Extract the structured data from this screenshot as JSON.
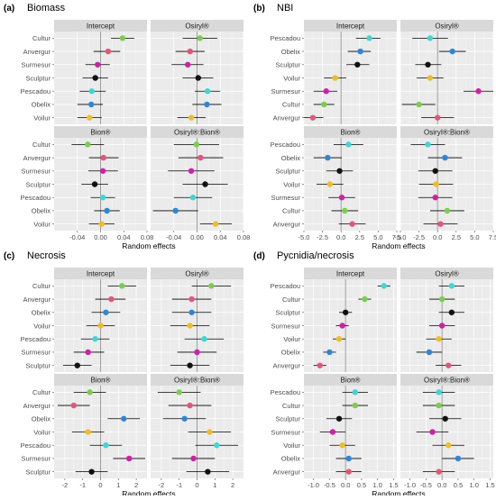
{
  "figure": {
    "axis_title": "Random effects",
    "colors": {
      "Cultur": "#7ccd4e",
      "Anvergur": "#e1577a",
      "Surmesur": "#d11fa8",
      "Sculptur": "#111111",
      "Pescadou": "#3fd6d6",
      "Obelix": "#2f86d8",
      "Voilur": "#f0be24"
    }
  },
  "chart_data": [
    {
      "label": "(a)",
      "title": "Biomass",
      "type": "scatter",
      "categories": [
        "Cultur",
        "Anvergur",
        "Surmesur",
        "Sculptur",
        "Pescadou",
        "Obelix",
        "Voilur"
      ],
      "xlim": [
        -0.08,
        0.08
      ],
      "ticks": [
        "-0.04",
        "0.00",
        "0.04",
        "0.08"
      ],
      "tick_values": [
        -0.04,
        0.0,
        0.04,
        0.08
      ],
      "xlabel": "Random effects",
      "facets": [
        {
          "title": "Intercept",
          "categories": [
            "Cultur",
            "Anvergur",
            "Surmesur",
            "Sculptur",
            "Pescadou",
            "Obelix",
            "Voilur"
          ],
          "values": [
            0.038,
            0.013,
            -0.005,
            -0.009,
            -0.015,
            -0.016,
            -0.019
          ],
          "lower": [
            0.018,
            -0.012,
            -0.026,
            -0.031,
            -0.036,
            -0.04,
            -0.04
          ],
          "upper": [
            0.058,
            0.034,
            0.016,
            0.013,
            0.009,
            0.004,
            0.002
          ]
        },
        {
          "title": "Osiryl®",
          "categories": [
            "Cultur",
            "Anvergur",
            "Surmesur",
            "Sculptur",
            "Pescadou",
            "Obelix",
            "Voilur"
          ],
          "values": [
            0.005,
            -0.012,
            -0.016,
            0.002,
            0.018,
            0.017,
            -0.01
          ],
          "lower": [
            -0.025,
            -0.037,
            -0.044,
            -0.025,
            -0.004,
            -0.008,
            -0.034
          ],
          "upper": [
            0.035,
            0.013,
            0.011,
            0.028,
            0.04,
            0.042,
            0.015
          ]
        },
        {
          "title": "Bion®",
          "categories": [
            "Cultur",
            "Anvergur",
            "Surmesur",
            "Sculptur",
            "Pescadou",
            "Obelix",
            "Voilur"
          ],
          "values": [
            -0.022,
            0.005,
            0.004,
            -0.01,
            0.004,
            0.011,
            0.002
          ],
          "lower": [
            -0.05,
            -0.02,
            -0.021,
            -0.033,
            -0.017,
            -0.011,
            -0.02
          ],
          "upper": [
            0.006,
            0.031,
            0.03,
            0.013,
            0.025,
            0.033,
            0.024
          ]
        },
        {
          "title": "OsiryI®:Bion®",
          "categories": [
            "Cultur",
            "Anvergur",
            "Surmesur",
            "Sculptur",
            "Pescadou",
            "Obelix",
            "Voilur"
          ],
          "values": [
            -0.001,
            0.006,
            -0.01,
            0.014,
            -0.007,
            -0.037,
            0.032
          ],
          "lower": [
            -0.04,
            -0.032,
            -0.05,
            -0.025,
            -0.04,
            -0.076,
            0.005
          ],
          "upper": [
            0.038,
            0.045,
            0.03,
            0.053,
            0.026,
            0.002,
            0.06
          ]
        }
      ]
    },
    {
      "label": "(b)",
      "title": "NBI",
      "type": "scatter",
      "categories": [
        "Pescadou",
        "Obelix",
        "Sculptur",
        "Voilur",
        "Surmesur",
        "Cultur",
        "Anvergur"
      ],
      "xlim": [
        -5.0,
        7.5
      ],
      "ticks": [
        "-5.0",
        "-2.5",
        "0.0",
        "2.5",
        "5.0",
        "7.5"
      ],
      "tick_values": [
        -5.0,
        -2.5,
        0.0,
        2.5,
        5.0,
        7.5
      ],
      "xlabel": "Random effects",
      "facets": [
        {
          "title": "Intercept",
          "categories": [
            "Pescadou",
            "Obelix",
            "Sculptur",
            "Voilur",
            "Surmesur",
            "Cultur",
            "Anvergur"
          ],
          "values": [
            3.8,
            2.6,
            2.2,
            -0.8,
            -2.0,
            -2.3,
            -3.8
          ],
          "lower": [
            2.0,
            0.9,
            0.7,
            -2.3,
            -3.7,
            -3.7,
            -5.0
          ],
          "upper": [
            5.3,
            4.0,
            3.8,
            0.7,
            -0.5,
            -0.9,
            -2.4
          ]
        },
        {
          "title": "Osiryl®",
          "categories": [
            "Pescadou",
            "Obelix",
            "Sculptur",
            "Voilur",
            "Surmesur",
            "Cultur",
            "Anvergur"
          ],
          "values": [
            -1.0,
            2.0,
            -1.3,
            -1.0,
            5.5,
            -2.5,
            0.0
          ],
          "lower": [
            -3.4,
            0.2,
            -3.0,
            -2.8,
            3.5,
            -4.8,
            -2.2
          ],
          "upper": [
            1.4,
            3.8,
            0.5,
            0.8,
            7.5,
            -0.3,
            2.2
          ]
        },
        {
          "title": "Bion®",
          "categories": [
            "Pescadou",
            "Obelix",
            "Sculptur",
            "Voilur",
            "Surmesur",
            "Cultur",
            "Anvergur"
          ],
          "values": [
            1.0,
            -1.8,
            -0.2,
            -1.5,
            0.1,
            0.5,
            1.5
          ],
          "lower": [
            -1.0,
            -3.7,
            -2.0,
            -3.3,
            -1.7,
            -1.3,
            -0.3
          ],
          "upper": [
            3.0,
            0.1,
            1.6,
            0.3,
            1.9,
            2.3,
            3.3
          ]
        },
        {
          "title": "OsiryI®:Bion®",
          "categories": [
            "Pescadou",
            "Obelix",
            "Sculptur",
            "Voilur",
            "Surmesur",
            "Cultur",
            "Anvergur"
          ],
          "values": [
            -1.3,
            1.0,
            -0.3,
            -0.2,
            -0.3,
            1.3,
            0.4
          ],
          "lower": [
            -3.6,
            -1.3,
            -2.6,
            -2.5,
            -2.6,
            -1.0,
            -1.9
          ],
          "upper": [
            1.0,
            3.3,
            2.0,
            2.1,
            2.0,
            3.6,
            2.7
          ]
        }
      ]
    },
    {
      "label": "(c)",
      "title": "Necrosis",
      "type": "scatter",
      "categories": [
        "Cultur",
        "Anvergur",
        "Obelix",
        "Voilur",
        "Pescadou",
        "Surmesur",
        "Sculptur"
      ],
      "xlim": [
        -2.6,
        2.6
      ],
      "ticks": [
        "-2",
        "-1",
        "0",
        "1",
        "2"
      ],
      "tick_values": [
        -2,
        -1,
        0,
        1,
        2
      ],
      "xlabel": "Random effects",
      "facets": [
        {
          "title": "Intercept",
          "categories": [
            "Cultur",
            "Anvergur",
            "Obelix",
            "Voilur",
            "Pescadou",
            "Surmesur",
            "Sculptur"
          ],
          "values": [
            1.2,
            0.6,
            0.3,
            0.0,
            -0.3,
            -0.7,
            -1.3
          ],
          "lower": [
            0.4,
            -0.3,
            -0.5,
            -0.8,
            -1.1,
            -1.5,
            -2.1
          ],
          "upper": [
            2.0,
            1.4,
            1.1,
            0.8,
            0.5,
            0.2,
            -0.5
          ]
        },
        {
          "title": "Osiryl®",
          "categories": [
            "Cultur",
            "Anvergur",
            "Obelix",
            "Voilur",
            "Pescadou",
            "Surmesur",
            "Sculptur"
          ],
          "values": [
            0.8,
            -0.3,
            -0.3,
            -0.4,
            0.4,
            0.0,
            -0.4
          ],
          "lower": [
            -0.3,
            -1.4,
            -1.4,
            -1.5,
            -0.7,
            -1.1,
            -1.5
          ],
          "upper": [
            1.9,
            0.8,
            0.8,
            0.7,
            1.5,
            1.1,
            0.7
          ]
        },
        {
          "title": "Bion®",
          "categories": [
            "Cultur",
            "Anvergur",
            "Obelix",
            "Voilur",
            "Pescadou",
            "Surmesur",
            "Sculptur"
          ],
          "values": [
            -0.6,
            -1.5,
            1.3,
            -0.7,
            0.3,
            1.6,
            -0.5
          ],
          "lower": [
            -1.5,
            -2.4,
            0.4,
            -1.6,
            -0.6,
            0.7,
            -1.4
          ],
          "upper": [
            0.3,
            -0.6,
            2.2,
            0.2,
            1.2,
            2.5,
            0.4
          ]
        },
        {
          "title": "OsiryI®:Bion®",
          "categories": [
            "Cultur",
            "Anvergur",
            "Obelix",
            "Voilur",
            "Pescadou",
            "Surmesur",
            "Sculptur"
          ],
          "values": [
            -1.0,
            -0.4,
            -0.7,
            0.7,
            1.1,
            -0.2,
            0.6
          ],
          "lower": [
            -2.2,
            -1.6,
            -1.9,
            -0.5,
            -0.1,
            -1.4,
            -0.6
          ],
          "upper": [
            0.2,
            0.8,
            0.5,
            1.9,
            2.3,
            1.0,
            1.8
          ]
        }
      ]
    },
    {
      "label": "(d)",
      "title": "Pycnidia/necrosis",
      "type": "scatter",
      "categories": [
        "Pescadou",
        "Cultur",
        "Sculptur",
        "Surmesur",
        "Voilur",
        "Obelix",
        "Anvergur"
      ],
      "xlim": [
        -1.3,
        1.6
      ],
      "ticks": [
        "-1.0",
        "-0.5",
        "0.0",
        "0.5",
        "1.0",
        "1.5"
      ],
      "tick_values": [
        -1.0,
        -0.5,
        0.0,
        0.5,
        1.0,
        1.5
      ],
      "xlabel": "Random effects",
      "facets": [
        {
          "title": "Intercept",
          "categories": [
            "Pescadou",
            "Cultur",
            "Sculptur",
            "Surmesur",
            "Voilur",
            "Obelix",
            "Anvergur"
          ],
          "values": [
            1.2,
            0.6,
            0.0,
            -0.1,
            -0.2,
            -0.5,
            -0.8
          ],
          "lower": [
            1.0,
            0.4,
            -0.2,
            -0.3,
            -0.4,
            -0.7,
            -1.0
          ],
          "upper": [
            1.4,
            0.8,
            0.2,
            0.1,
            0.0,
            -0.3,
            -0.6
          ]
        },
        {
          "title": "Osiryl®",
          "categories": [
            "Pescadou",
            "Cultur",
            "Sculptur",
            "Surmesur",
            "Voilur",
            "Obelix",
            "Anvergur"
          ],
          "values": [
            0.3,
            0.0,
            0.3,
            0.0,
            -0.1,
            -0.4,
            0.2
          ],
          "lower": [
            -0.1,
            -0.4,
            -0.1,
            -0.4,
            -0.5,
            -0.8,
            -0.2
          ],
          "upper": [
            0.7,
            0.4,
            0.7,
            0.4,
            0.3,
            0.0,
            0.6
          ]
        },
        {
          "title": "Bion®",
          "categories": [
            "Pescadou",
            "Cultur",
            "Sculptur",
            "Surmesur",
            "Voilur",
            "Obelix",
            "Anvergur"
          ],
          "values": [
            0.3,
            0.3,
            -0.2,
            -0.4,
            -0.1,
            0.1,
            0.1
          ],
          "lower": [
            -0.1,
            -0.1,
            -0.6,
            -0.8,
            -0.5,
            -0.3,
            -0.3
          ],
          "upper": [
            0.7,
            0.7,
            0.2,
            0.0,
            0.3,
            0.5,
            0.5
          ]
        },
        {
          "title": "OsiryI®:Bion®",
          "categories": [
            "Pescadou",
            "Cultur",
            "Sculptur",
            "Surmesur",
            "Voilur",
            "Obelix",
            "Anvergur"
          ],
          "values": [
            -0.1,
            -0.1,
            0.1,
            -0.3,
            0.2,
            0.5,
            -0.1
          ],
          "lower": [
            -0.6,
            -0.6,
            -0.4,
            -0.8,
            -0.3,
            0.0,
            -0.6
          ],
          "upper": [
            0.4,
            0.4,
            0.6,
            0.2,
            0.7,
            1.0,
            0.4
          ]
        }
      ]
    }
  ]
}
